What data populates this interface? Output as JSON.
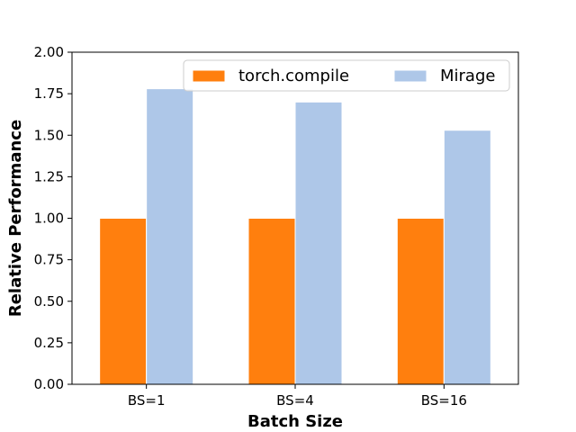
{
  "chart_data": {
    "type": "bar",
    "categories": [
      "BS=1",
      "BS=4",
      "BS=16"
    ],
    "series": [
      {
        "name": "torch.compile",
        "values": [
          1.0,
          1.0,
          1.0
        ],
        "color": "#ff7f0e"
      },
      {
        "name": "Mirage",
        "values": [
          1.78,
          1.7,
          1.53
        ],
        "color": "#aec7e8"
      }
    ],
    "title": "",
    "xlabel": "Batch Size",
    "ylabel": "Relative Performance",
    "ylim": [
      0,
      2.0
    ],
    "yticks": [
      "0.00",
      "0.25",
      "0.50",
      "0.75",
      "1.00",
      "1.25",
      "1.50",
      "1.75",
      "2.00"
    ],
    "grid": false,
    "legend_position": "top-right",
    "legend_columns": 2
  }
}
